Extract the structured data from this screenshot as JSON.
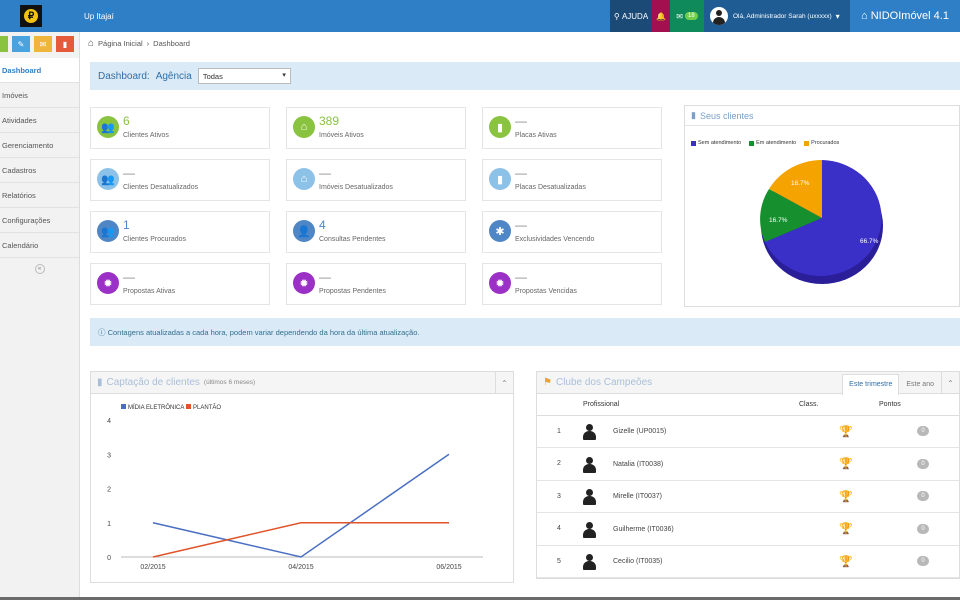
{
  "topbar": {
    "org": "Up Itajaí",
    "help": "AJUDA",
    "messages": "18",
    "user": "Olá, Administrador Sarah (uxxxxx)",
    "brand": "NIDOImóvel 4.1"
  },
  "sidebar": {
    "items": [
      "Dashboard",
      "Imóveis",
      "Atividades",
      "Gerenciamento",
      "Cadastros",
      "Relatórios",
      "Configurações",
      "Calendário"
    ]
  },
  "breadcrumb": {
    "home": "Página Inicial",
    "current": "Dashboard"
  },
  "dashboard": {
    "title": "Dashboard:",
    "agency_label": "Agência",
    "agency_value": "Todas"
  },
  "stats": [
    {
      "num": "6",
      "label": "Clientes Ativos"
    },
    {
      "num": "389",
      "label": "Imóveis Ativos"
    },
    {
      "num": "—",
      "label": "Placas Ativas"
    },
    {
      "num": "—",
      "label": "Clientes Desatualizados"
    },
    {
      "num": "—",
      "label": "Imóveis Desatualizados"
    },
    {
      "num": "—",
      "label": "Placas Desatualizadas"
    },
    {
      "num": "1",
      "label": "Clientes Procurados"
    },
    {
      "num": "4",
      "label": "Consultas Pendentes"
    },
    {
      "num": "—",
      "label": "Exclusividades Vencendo"
    },
    {
      "num": "—",
      "label": "Propostas Ativas"
    },
    {
      "num": "—",
      "label": "Propostas Pendentes"
    },
    {
      "num": "—",
      "label": "Propostas Vencidas"
    }
  ],
  "pie": {
    "title": "Seus clientes",
    "legend": [
      "Sem atendimento",
      "Em atendimento",
      "Procurados"
    ],
    "labels": [
      "66.7%",
      "16.7%",
      "16.7%"
    ]
  },
  "info": "Contagens atualizadas a cada hora, podem variar dependendo da hora da última atualização.",
  "captacao": {
    "title": "Captação de clientes",
    "subtitle": "(últimos 6 meses)"
  },
  "chart_data": {
    "type": "line",
    "categories": [
      "02/2015",
      "03/2015",
      "04/2015",
      "05/2015",
      "06/2015"
    ],
    "series": [
      {
        "name": "MÍDIA ELETRÔNICA",
        "values": [
          1,
          0.5,
          0,
          1.5,
          3
        ],
        "color": "#4a6fc2"
      },
      {
        "name": "PLANTÃO",
        "values": [
          0,
          0.5,
          1,
          1,
          1
        ],
        "color": "#e0542a"
      }
    ],
    "x_tick_labels": [
      "02/2015",
      "04/2015",
      "06/2015"
    ],
    "y_ticks": [
      "0",
      "1",
      "2",
      "3",
      "4"
    ],
    "ylim": [
      0,
      4
    ],
    "legend_position": "top-left"
  },
  "clube": {
    "title": "Clube dos Campeões",
    "tabs": [
      "Este trimestre",
      "Este ano"
    ],
    "cols": [
      "Profissional",
      "Class.",
      "Pontos"
    ],
    "rows": [
      {
        "pos": "1",
        "name": "Gizelle (UP0015)",
        "pts": "0"
      },
      {
        "pos": "2",
        "name": "Natalia (IT0038)",
        "pts": "0"
      },
      {
        "pos": "3",
        "name": "Mirelle (IT0037)",
        "pts": "0"
      },
      {
        "pos": "4",
        "name": "Guilherme (IT0036)",
        "pts": "0"
      },
      {
        "pos": "5",
        "name": "Cecilio (IT0035)",
        "pts": "0"
      }
    ]
  }
}
